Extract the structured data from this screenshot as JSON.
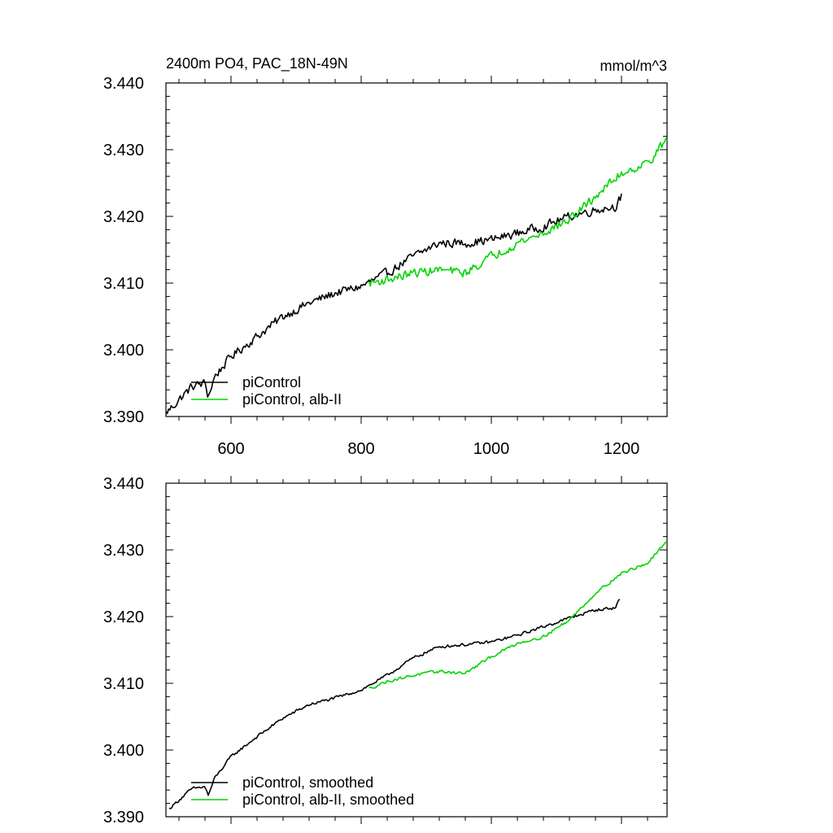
{
  "chart_data": [
    {
      "type": "line",
      "title_left": "2400m PO4, PAC_18N-49N",
      "title_right": "mmol/m^3",
      "xlim": [
        500,
        1270
      ],
      "ylim": [
        3.39,
        3.44
      ],
      "x_ticks": [
        600,
        800,
        1000,
        1200
      ],
      "x_tick_labels": [
        "600",
        "800",
        "1000",
        "1200"
      ],
      "y_ticks": [
        3.39,
        3.4,
        3.41,
        3.42,
        3.43,
        3.44
      ],
      "y_tick_labels": [
        "3.390",
        "3.400",
        "3.410",
        "3.420",
        "3.430",
        "3.440"
      ],
      "legend_position": "bottom-left",
      "series": [
        {
          "name": "piControl",
          "color": "#000000",
          "noise": 0.0006,
          "x": [
            500,
            520,
            540,
            560,
            565,
            575,
            600,
            640,
            680,
            720,
            760,
            800,
            840,
            880,
            920,
            960,
            1000,
            1040,
            1080,
            1120,
            1160,
            1190,
            1200
          ],
          "y": [
            3.3905,
            3.3925,
            3.3945,
            3.395,
            3.393,
            3.396,
            3.399,
            3.402,
            3.405,
            3.407,
            3.4085,
            3.4095,
            3.4115,
            3.414,
            3.416,
            3.416,
            3.4165,
            3.4175,
            3.4185,
            3.42,
            3.421,
            3.4215,
            3.423
          ]
        },
        {
          "name": "piControl, alb-II",
          "color": "#00d400",
          "noise": 0.0006,
          "x": [
            812,
            840,
            880,
            920,
            960,
            1000,
            1040,
            1080,
            1120,
            1160,
            1200,
            1240,
            1270
          ],
          "y": [
            3.41,
            3.4105,
            3.4115,
            3.412,
            3.4115,
            3.414,
            3.416,
            3.4175,
            3.4195,
            3.423,
            3.4265,
            3.428,
            3.4315
          ]
        }
      ]
    },
    {
      "type": "line",
      "xlim": [
        500,
        1270
      ],
      "ylim": [
        3.39,
        3.44
      ],
      "x_ticks": [
        600,
        800,
        1000,
        1200
      ],
      "y_ticks": [
        3.39,
        3.4,
        3.41,
        3.42,
        3.43,
        3.44
      ],
      "y_tick_labels": [
        "3.390",
        "3.400",
        "3.410",
        "3.420",
        "3.430",
        "3.440"
      ],
      "legend_position": "bottom-left",
      "series": [
        {
          "name": "piControl, smoothed",
          "color": "#000000",
          "noise": 0.0002,
          "x": [
            505,
            520,
            540,
            560,
            565,
            575,
            600,
            640,
            680,
            720,
            760,
            800,
            840,
            880,
            920,
            960,
            1000,
            1040,
            1080,
            1120,
            1160,
            1190,
            1198
          ],
          "y": [
            3.3912,
            3.3925,
            3.3942,
            3.3945,
            3.3932,
            3.3958,
            3.399,
            3.402,
            3.4048,
            3.4068,
            3.4078,
            3.409,
            3.4112,
            3.4138,
            3.4155,
            3.4158,
            3.4162,
            3.4172,
            3.4185,
            3.4198,
            3.421,
            3.4213,
            3.4228
          ]
        },
        {
          "name": "piControl, alb-II, smoothed",
          "color": "#00d400",
          "noise": 0.0002,
          "x": [
            812,
            840,
            880,
            920,
            960,
            1000,
            1040,
            1080,
            1120,
            1160,
            1200,
            1240,
            1270
          ],
          "y": [
            3.4092,
            3.4103,
            3.4112,
            3.4118,
            3.4115,
            3.414,
            3.416,
            3.417,
            3.4195,
            3.4235,
            3.4265,
            3.428,
            3.4312
          ]
        }
      ]
    }
  ]
}
